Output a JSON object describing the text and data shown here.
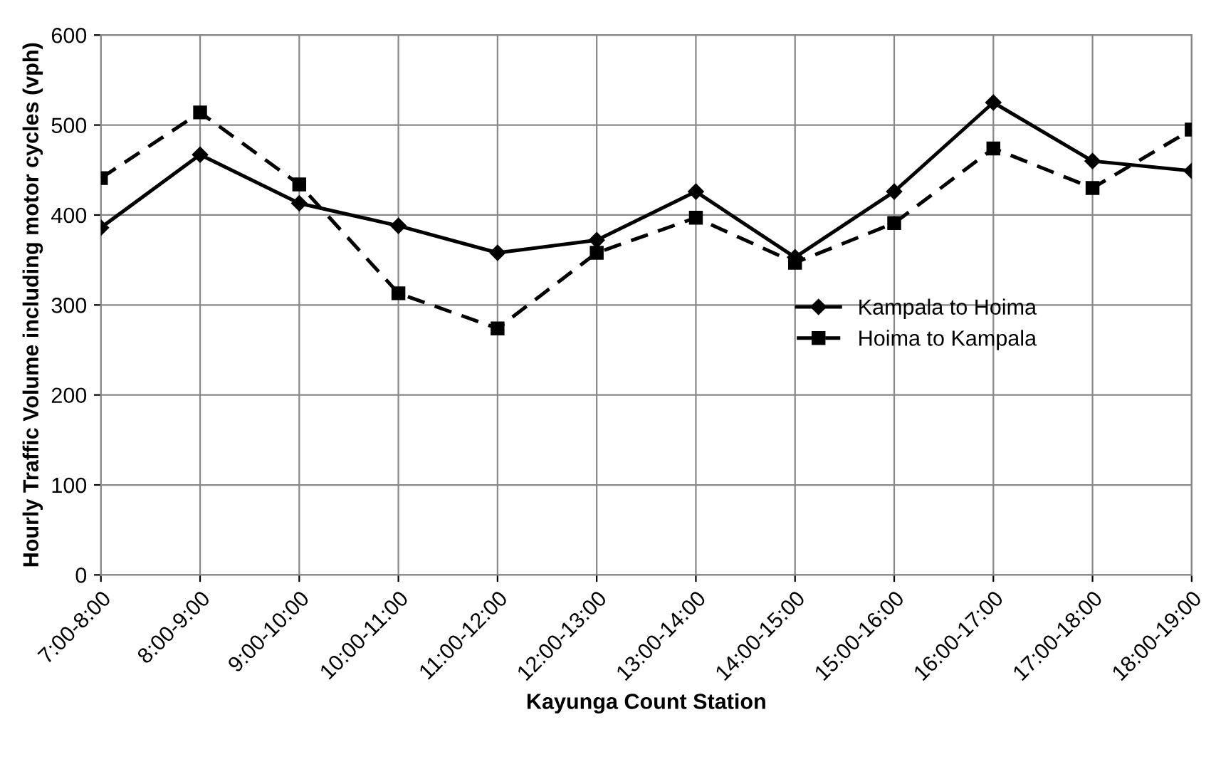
{
  "chart_data": {
    "type": "line",
    "xlabel": "Kayunga Count Station",
    "ylabel": "Hourly Traffic Volume including motor cycles (vph)",
    "categories": [
      "7:00-8:00",
      "8:00-9:00",
      "9:00-10:00",
      "10:00-11:00",
      "11:00-12:00",
      "12:00-13:00",
      "13:00-14:00",
      "14:00-15:00",
      "15:00-16:00",
      "16:00-17:00",
      "17:00-18:00",
      "18:00-19:00"
    ],
    "series": [
      {
        "name": "Kampala to Hoima",
        "color": "#000000",
        "marker": "diamond",
        "line_style": "solid",
        "values": [
          386,
          467,
          413,
          388,
          358,
          372,
          426,
          353,
          426,
          525,
          460,
          449
        ]
      },
      {
        "name": "Hoima to Kampala",
        "color": "#000000",
        "marker": "square",
        "line_style": "dashed",
        "values": [
          441,
          514,
          434,
          313,
          274,
          358,
          397,
          347,
          391,
          474,
          430,
          495
        ]
      }
    ],
    "ylim": [
      0,
      600
    ],
    "yticks": [
      0,
      100,
      200,
      300,
      400,
      500,
      600
    ],
    "grid": true,
    "legend": "right"
  }
}
